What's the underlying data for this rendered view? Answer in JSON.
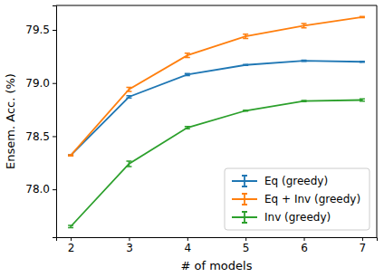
{
  "chart_data": {
    "type": "line",
    "x_label": "# of models",
    "y_label": "Ensem. Acc. (%)",
    "x": [
      2,
      3,
      4,
      5,
      6,
      7
    ],
    "xlim": [
      1.75,
      7.25
    ],
    "xticks": [
      2,
      3,
      4,
      5,
      6,
      7
    ],
    "ylim": [
      77.55,
      79.73
    ],
    "yticks": [
      {
        "value": 78.0,
        "label": "78.0"
      },
      {
        "value": 78.5,
        "label": "78.5"
      },
      {
        "value": 79.0,
        "label": "79.0"
      },
      {
        "value": 79.5,
        "label": "79.5"
      }
    ],
    "grid": false,
    "legend": "lower right",
    "series": [
      {
        "name": "Eq (greedy)",
        "color": "#1f77b4",
        "values": [
          78.32,
          78.87,
          79.08,
          79.17,
          79.21,
          79.2
        ],
        "errors": [
          0.005,
          0.01,
          0.01,
          0.005,
          0.005,
          0.005
        ]
      },
      {
        "name": "Eq + Inv (greedy)",
        "color": "#ff7f0e",
        "values": [
          78.32,
          78.94,
          79.26,
          79.44,
          79.54,
          79.62
        ],
        "errors": [
          0.005,
          0.02,
          0.02,
          0.02,
          0.02,
          0.005
        ]
      },
      {
        "name": "Inv (greedy)",
        "color": "#2ca02c",
        "values": [
          77.65,
          78.24,
          78.58,
          78.74,
          78.83,
          78.84
        ],
        "errors": [
          0.01,
          0.025,
          0.01,
          0.005,
          0.005,
          0.01
        ]
      }
    ]
  }
}
